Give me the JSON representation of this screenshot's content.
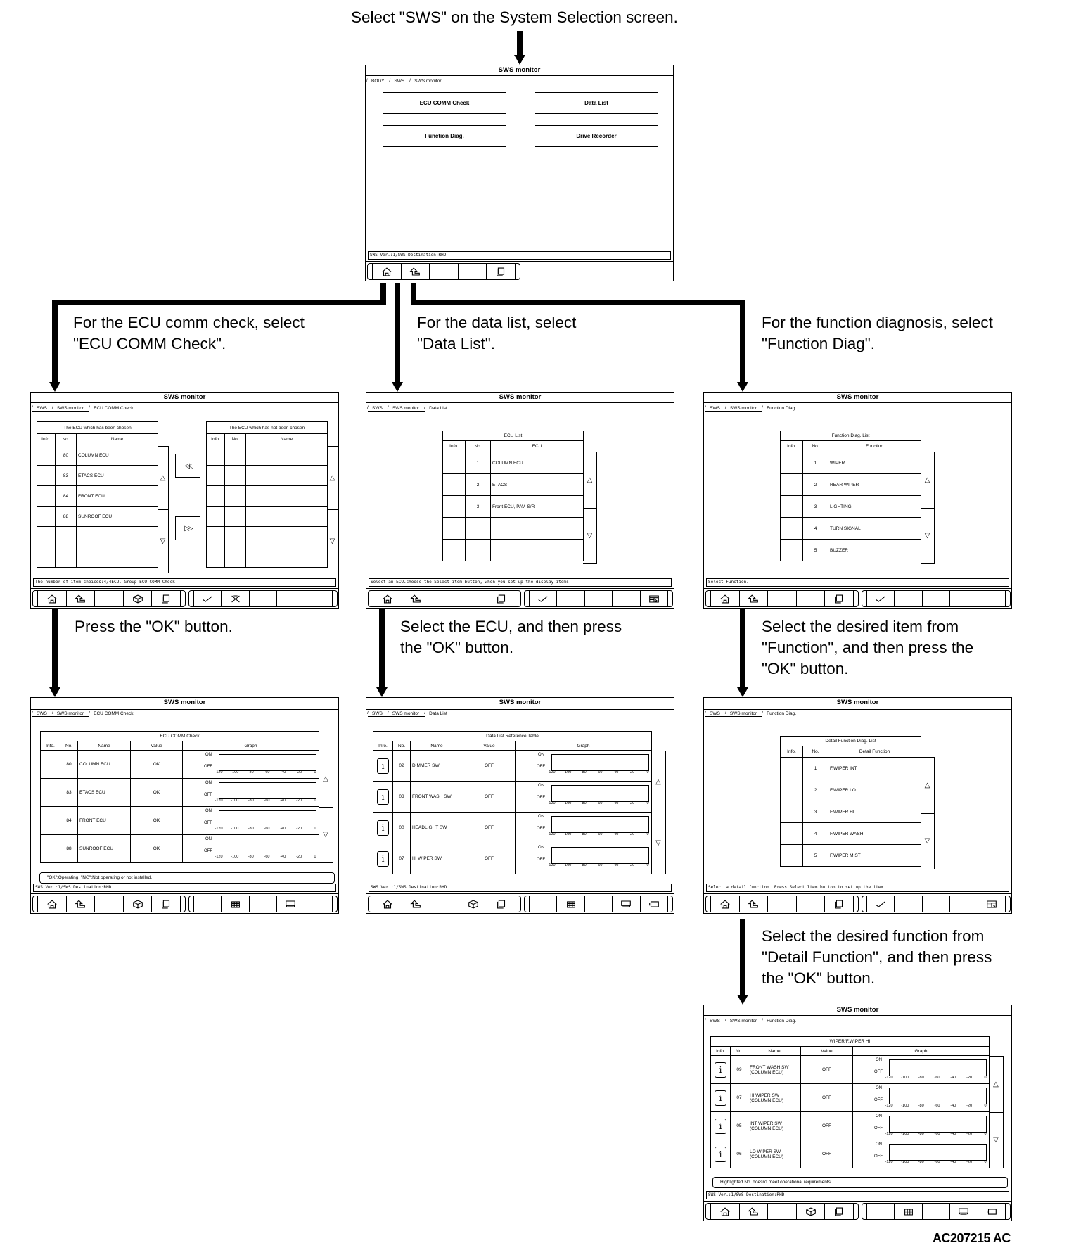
{
  "captions": {
    "top": [
      "Select \"SWS\" on the System Selection screen."
    ],
    "ecu_comm": [
      "For the ECU comm check, select",
      "\"ECU COMM Check\"."
    ],
    "data_list": [
      "For the data list, select",
      "\"Data List\"."
    ],
    "function_diag": [
      "For the function diagnosis, select",
      "\"Function Diag\"."
    ],
    "press_ok": [
      "Press the \"OK\" button."
    ],
    "select_ecu": [
      "Select the ECU, and then press",
      "the \"OK\" button."
    ],
    "select_item": [
      "Select the desired item from",
      "\"Function\", and then press the",
      "\"OK\" button."
    ],
    "select_function": [
      "Select the desired function from",
      "\"Detail Function\", and then press",
      "the \"OK\" button."
    ]
  },
  "figure_id": "AC207215 AC",
  "graph_axis": {
    "on": "ON",
    "off": "OFF",
    "ticks": [
      "-120",
      "-100",
      "-80",
      "-60",
      "-40",
      "-20",
      "0"
    ]
  },
  "scroll": {
    "up": "△",
    "down": "▽"
  },
  "panels": [
    {
      "type": "menu",
      "title": "SWS monitor",
      "breadcrumb": [
        "BODY",
        "SWS",
        "SWS monitor"
      ],
      "buttons": [
        "ECU COMM Check",
        "Data List",
        "Function Diag.",
        "Drive Recorder"
      ],
      "status": "SWS Ver.:1/SWS Destination:RHD",
      "toolbar": {
        "left": [
          "home",
          "back",
          "",
          "",
          "copy"
        ],
        "right": []
      }
    },
    {
      "type": "ecu_select",
      "title": "SWS monitor",
      "breadcrumb": [
        "SWS",
        "SWS monitor",
        "ECU COMM Check"
      ],
      "left_table": {
        "title": "The ECU which has been chosen",
        "columns": [
          "Info.",
          "No.",
          "Name"
        ],
        "rows": [
          [
            "",
            "80",
            "COLUMN ECU"
          ],
          [
            "",
            "83",
            "ETACS ECU"
          ],
          [
            "",
            "84",
            "FRONT ECU"
          ],
          [
            "",
            "88",
            "SUNROOF ECU"
          ]
        ]
      },
      "right_table": {
        "title": "The ECU which has not been chosen",
        "columns": [
          "Info.",
          "No.",
          "Name"
        ],
        "rows": []
      },
      "move_left": "◁◁",
      "move_right": "▷▷",
      "status": "The number of item choices:4/4ECU. Group ECU COMM Check",
      "toolbar": {
        "left": [
          "home",
          "back",
          "",
          "package",
          "copy"
        ],
        "right": [
          "check",
          "cancel",
          "",
          "",
          ""
        ]
      }
    },
    {
      "type": "list",
      "title": "SWS monitor",
      "breadcrumb": [
        "SWS",
        "SWS monitor",
        "Data List"
      ],
      "table": {
        "title": "ECU List",
        "columns": [
          "Info.",
          "No.",
          "ECU"
        ],
        "rows": [
          [
            "",
            "1",
            "COLUMN ECU"
          ],
          [
            "",
            "2",
            "ETACS"
          ],
          [
            "",
            "3",
            "Front ECU, PAV, S/R"
          ]
        ]
      },
      "status": "Select an ECU.choose the Select item button, when you set up the display items.",
      "toolbar": {
        "left": [
          "home",
          "back",
          "",
          "",
          "copy"
        ],
        "right": [
          "check",
          "",
          "",
          "",
          "select-item"
        ]
      }
    },
    {
      "type": "list",
      "title": "SWS monitor",
      "breadcrumb": [
        "SWS",
        "SWS monitor",
        "Function Diag."
      ],
      "table": {
        "title": "Function Diag. List",
        "columns": [
          "Info.",
          "No.",
          "Function"
        ],
        "rows": [
          [
            "",
            "1",
            "WIPER"
          ],
          [
            "",
            "2",
            "REAR WIPER"
          ],
          [
            "",
            "3",
            "LIGHTING"
          ],
          [
            "",
            "4",
            "TURN SIGNAL"
          ],
          [
            "",
            "5",
            "BUZZER"
          ]
        ]
      },
      "status": "Select Function.",
      "toolbar": {
        "left": [
          "home",
          "back",
          "",
          "",
          "copy"
        ],
        "right": [
          "check",
          "",
          "",
          "",
          ""
        ]
      }
    },
    {
      "type": "graph",
      "title": "SWS monitor",
      "breadcrumb": [
        "SWS",
        "SWS monitor",
        "ECU COMM Check"
      ],
      "table": {
        "title": "ECU COMM Check",
        "columns": [
          "Info.",
          "No.",
          "Name",
          "Value",
          "Graph"
        ],
        "rows": [
          {
            "info": false,
            "no": "80",
            "name": "COLUMN ECU",
            "value": "OK"
          },
          {
            "info": false,
            "no": "83",
            "name": "ETACS ECU",
            "value": "OK"
          },
          {
            "info": false,
            "no": "84",
            "name": "FRONT ECU",
            "value": "OK"
          },
          {
            "info": false,
            "no": "88",
            "name": "SUNROOF ECU",
            "value": "OK"
          }
        ]
      },
      "note": "\"OK\":Operating, \"NG\":Not operating or not installed.",
      "status": "SWS Ver.:1/SWS Destination:RHD",
      "toolbar": {
        "left": [
          "home",
          "back",
          "",
          "package",
          "copy"
        ],
        "right": [
          "",
          "table",
          "",
          "graph",
          ""
        ]
      }
    },
    {
      "type": "graph",
      "title": "SWS monitor",
      "breadcrumb": [
        "SWS",
        "SWS monitor",
        "Data List"
      ],
      "table": {
        "title": "Data List Reference Table",
        "columns": [
          "Info.",
          "No.",
          "Name",
          "Value",
          "Graph"
        ],
        "rows": [
          {
            "info": true,
            "no": "02",
            "name": "DIMMER SW",
            "value": "OFF"
          },
          {
            "info": true,
            "no": "03",
            "name": "FRONT WASH SW",
            "value": "OFF"
          },
          {
            "info": true,
            "no": "00",
            "name": "HEADLIGHT SW",
            "value": "OFF"
          },
          {
            "info": true,
            "no": "07",
            "name": "HI WIPER SW",
            "value": "OFF"
          }
        ]
      },
      "status": "SWS Ver.:1/SWS Destination:RHD",
      "toolbar": {
        "left": [
          "home",
          "back",
          "",
          "package",
          "copy"
        ],
        "right": [
          "",
          "table",
          "",
          "graph",
          "battery"
        ]
      }
    },
    {
      "type": "list",
      "title": "SWS monitor",
      "breadcrumb": [
        "SWS",
        "SWS monitor",
        "Function Diag."
      ],
      "table": {
        "title": "Detail Function Diag. List",
        "columns": [
          "Info.",
          "No.",
          "Detail Function"
        ],
        "rows": [
          [
            "",
            "1",
            "F.WIPER INT"
          ],
          [
            "",
            "2",
            "F.WIPER LO"
          ],
          [
            "",
            "3",
            "F.WIPER HI"
          ],
          [
            "",
            "4",
            "F.WIPER WASH"
          ],
          [
            "",
            "5",
            "F.WIPER MIST"
          ]
        ]
      },
      "status": "Select a detail function. Press Select Item button to set up the item.",
      "toolbar": {
        "left": [
          "home",
          "back",
          "",
          "",
          "copy"
        ],
        "right": [
          "check",
          "",
          "",
          "",
          "select-item"
        ]
      }
    },
    {
      "type": "graph",
      "title": "SWS monitor",
      "breadcrumb": [
        "SWS",
        "SWS monitor",
        "Function Diag."
      ],
      "table": {
        "title": "WIPER/F.WIPER HI",
        "columns": [
          "Info.",
          "No.",
          "Name",
          "Value",
          "Graph"
        ],
        "rows": [
          {
            "info": true,
            "no": "09",
            "name": "FRONT WASH SW",
            "source": "(COLUMN ECU)",
            "value": "OFF"
          },
          {
            "info": true,
            "no": "07",
            "name": "HI WIPER SW",
            "source": "(COLUMN ECU)",
            "value": "OFF"
          },
          {
            "info": true,
            "no": "05",
            "name": "INT WIPER SW",
            "source": "(COLUMN ECU)",
            "value": "OFF"
          },
          {
            "info": true,
            "no": "06",
            "name": "LO WIPER SW",
            "source": "(COLUMN ECU)",
            "value": "OFF"
          }
        ]
      },
      "note": "Highlighted No. doesn't meet operational requirements.",
      "status": "SWS Ver.:1/SWS Destination:RHD",
      "toolbar": {
        "left": [
          "home",
          "back",
          "",
          "package",
          "copy"
        ],
        "right": [
          "",
          "table",
          "",
          "graph",
          "battery"
        ]
      }
    }
  ]
}
